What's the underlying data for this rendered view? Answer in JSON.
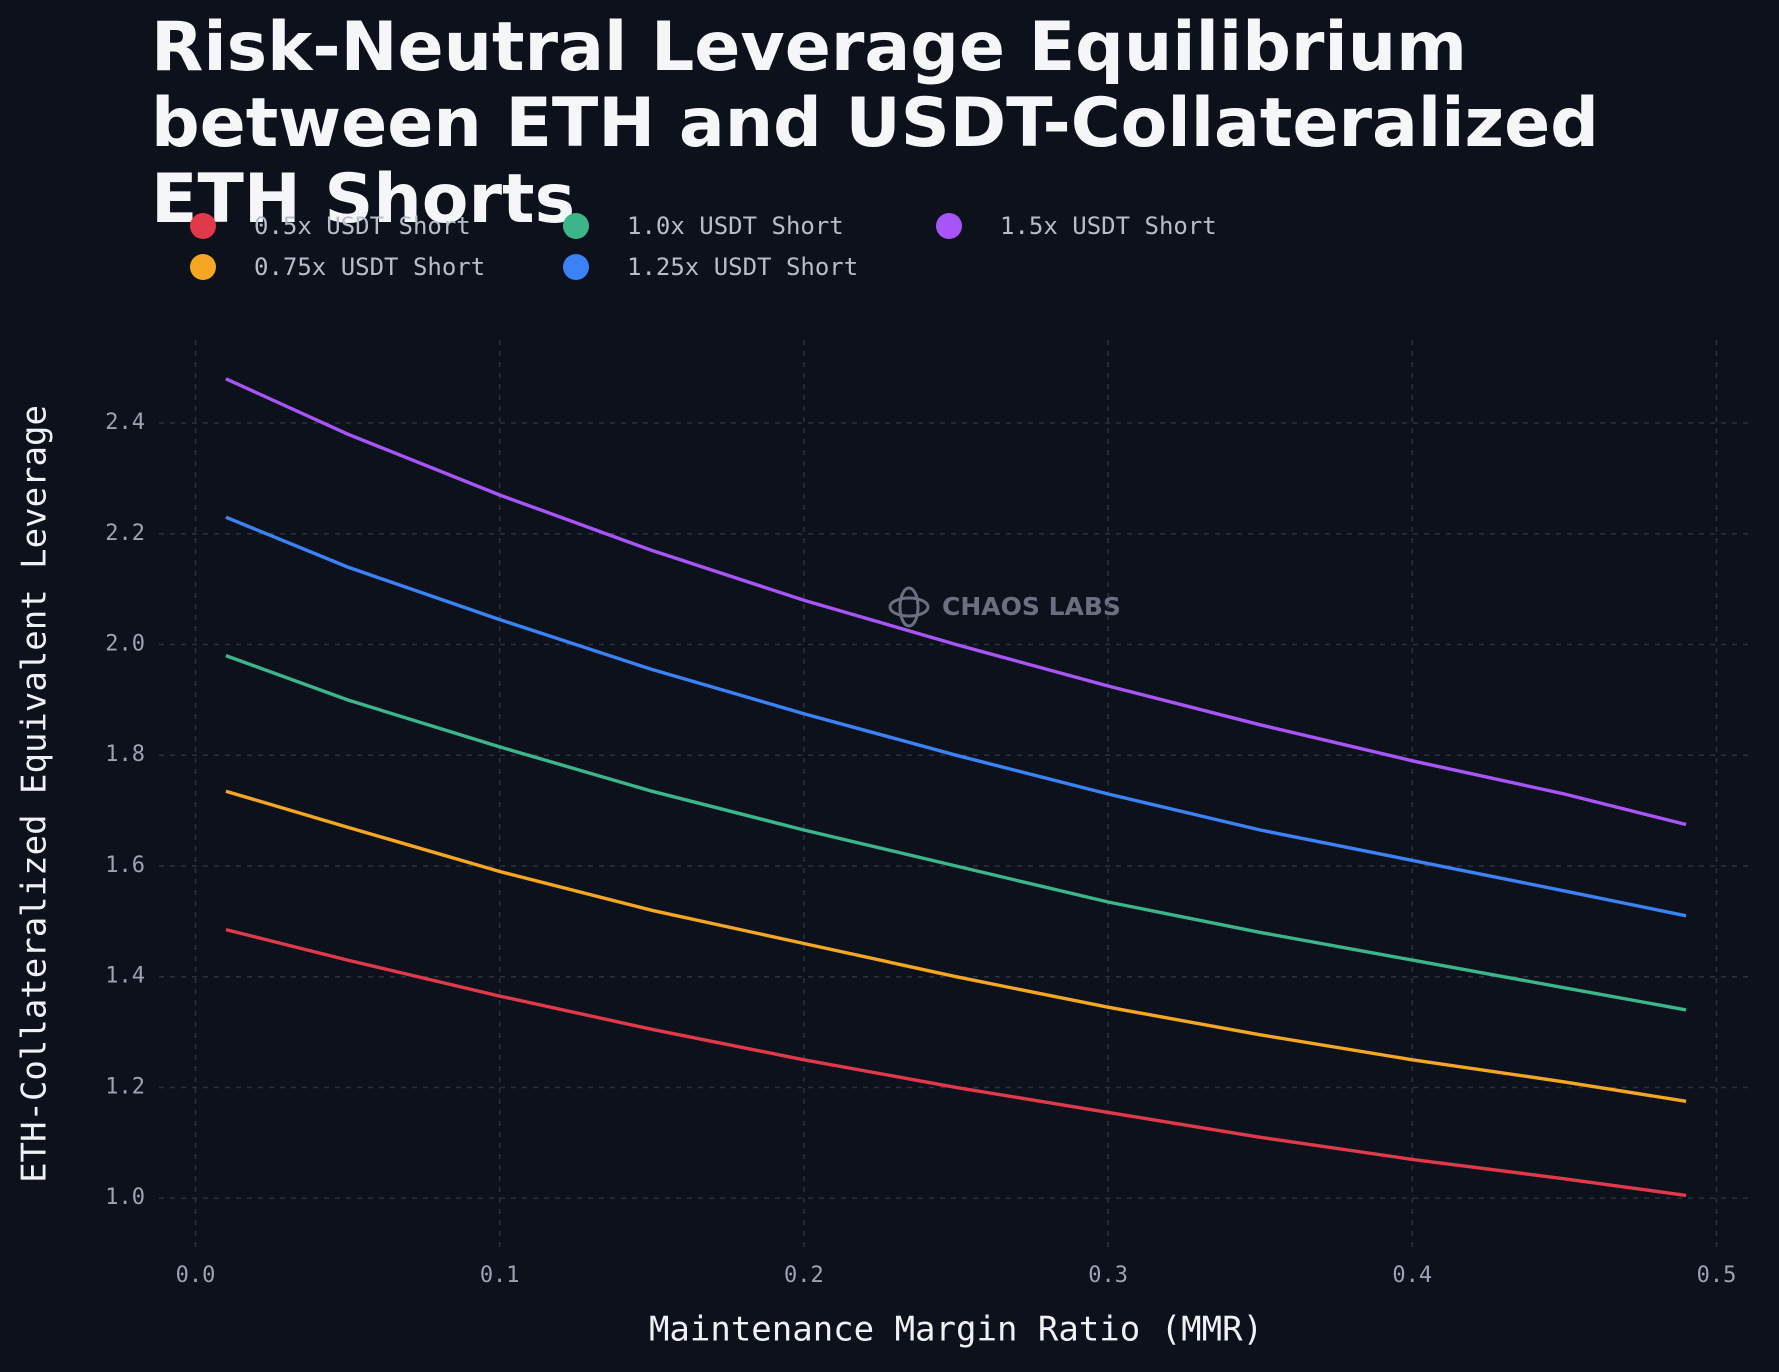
{
  "chart_data": {
    "type": "line",
    "title": "Risk-Neutral Leverage Equilibrium between ETH and USDT-Collateralized ETH Shorts",
    "x_label": "Maintenance Margin Ratio (MMR)",
    "y_label": "ETH-Collateralized Equivalent Leverage",
    "watermark": "CHAOS LABS",
    "x": [
      0.01,
      0.05,
      0.1,
      0.15,
      0.2,
      0.25,
      0.3,
      0.35,
      0.4,
      0.45,
      0.49
    ],
    "series": [
      {
        "name": "0.5x USDT Short",
        "color": "#e0394a",
        "values": [
          1.485,
          1.43,
          1.365,
          1.305,
          1.25,
          1.2,
          1.155,
          1.11,
          1.07,
          1.035,
          1.005
        ]
      },
      {
        "name": "0.75x USDT Short",
        "color": "#f5a623",
        "values": [
          1.735,
          1.67,
          1.59,
          1.52,
          1.46,
          1.4,
          1.345,
          1.295,
          1.25,
          1.21,
          1.175
        ]
      },
      {
        "name": "1.0x USDT Short",
        "color": "#3db58a",
        "values": [
          1.98,
          1.9,
          1.815,
          1.735,
          1.665,
          1.6,
          1.535,
          1.48,
          1.43,
          1.38,
          1.34
        ]
      },
      {
        "name": "1.25x USDT Short",
        "color": "#3b82f6",
        "values": [
          2.23,
          2.14,
          2.045,
          1.955,
          1.875,
          1.8,
          1.73,
          1.665,
          1.61,
          1.555,
          1.51
        ]
      },
      {
        "name": "1.5x USDT Short",
        "color": "#a855f7",
        "values": [
          2.48,
          2.38,
          2.27,
          2.17,
          2.08,
          2.0,
          1.925,
          1.855,
          1.79,
          1.73,
          1.675
        ]
      }
    ],
    "xlim": [
      -0.012,
      0.512
    ],
    "ylim": [
      0.91,
      2.55
    ],
    "xticks": [
      {
        "value": 0,
        "label": "0.0"
      },
      0.1,
      0.2,
      0.3,
      0.4,
      0.5
    ],
    "yticks": [
      {
        "value": 1,
        "label": "1.0"
      },
      1.2,
      1.4,
      1.6,
      1.8,
      {
        "value": 2,
        "label": "2.0"
      },
      2.2,
      2.4
    ],
    "grid": true
  }
}
